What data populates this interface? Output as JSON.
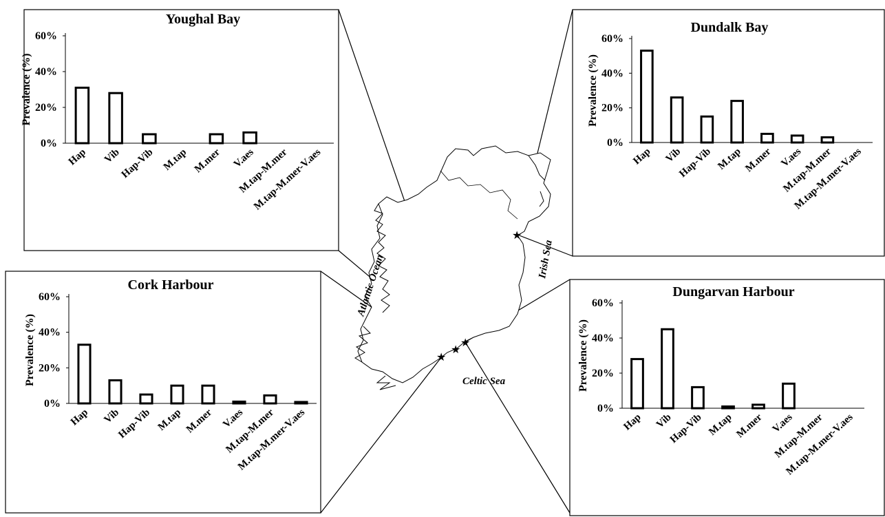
{
  "figure": {
    "map_labels": {
      "atlantic": "Atlantic Ocean",
      "irish": "Irish Sea",
      "celtic": "Celtic Sea"
    },
    "star_symbol": "★",
    "colors": {
      "line": "#000000",
      "bar_fill": "#ffffff",
      "background": "#ffffff"
    }
  },
  "chart_data": [
    {
      "type": "bar",
      "title": "Youghal Bay",
      "ylabel": "Prevalence (%)",
      "ylim": [
        0,
        60
      ],
      "yticks": [
        "0%",
        "20%",
        "40%",
        "60%"
      ],
      "categories": [
        "Hap",
        "Vib",
        "Hap-Vib",
        "M.tap",
        "M.mer",
        "V.aes",
        "M.tap-M.mer",
        "M.tap-M.mer-V.aes"
      ],
      "values": [
        31,
        28,
        5,
        0,
        5,
        6,
        0,
        0
      ]
    },
    {
      "type": "bar",
      "title": "Dundalk Bay",
      "ylabel": "Prevalence (%)",
      "ylim": [
        0,
        60
      ],
      "yticks": [
        "0%",
        "20%",
        "40%",
        "60%"
      ],
      "categories": [
        "Hap",
        "Vib",
        "Hap-Vib",
        "M.tap",
        "M.mer",
        "V.aes",
        "M.tap-M.mer",
        "M.tap-M.mer-V.aes"
      ],
      "values": [
        53,
        26,
        15,
        24,
        5,
        4,
        3,
        0
      ]
    },
    {
      "type": "bar",
      "title": "Cork Harbour",
      "ylabel": "Prevalence (%)",
      "ylim": [
        0,
        60
      ],
      "yticks": [
        "0%",
        "20%",
        "40%",
        "60%"
      ],
      "categories": [
        "Hap",
        "Vib",
        "Hap-Vib",
        "M.tap",
        "M.mer",
        "V.aes",
        "M.tap-M.mer",
        "M.tap-M.mer-V.aes"
      ],
      "values": [
        33,
        13,
        5,
        10,
        10,
        1,
        4.5,
        0.8
      ]
    },
    {
      "type": "bar",
      "title": "Dungarvan Harbour",
      "ylabel": "Prevalence (%)",
      "ylim": [
        0,
        60
      ],
      "yticks": [
        "0%",
        "20%",
        "40%",
        "60%"
      ],
      "categories": [
        "Hap",
        "Vib",
        "Hap-Vib",
        "M.tap",
        "M.mer",
        "V.aes",
        "M.tap-M.mer",
        "M.tap-M.mer-V.aes"
      ],
      "values": [
        28,
        45,
        12,
        1,
        2,
        14,
        0,
        0
      ]
    }
  ]
}
